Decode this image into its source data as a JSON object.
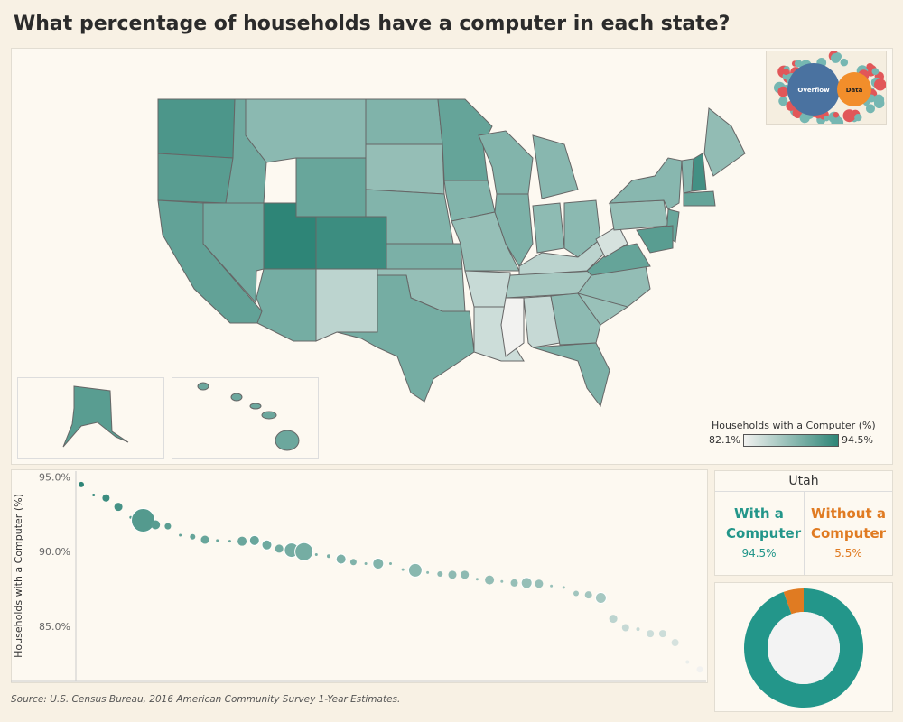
{
  "title": "What percentage of households have a computer in each state?",
  "logo": {
    "text_left": "Overflow",
    "text_right": "Data"
  },
  "colors": {
    "low": "#f2f2f0",
    "high": "#2e8577",
    "with": "#23968a",
    "without": "#e07b22"
  },
  "map": {
    "legend_title": "Households with a Computer (%)",
    "legend_min": "82.1%",
    "legend_max": "94.5%",
    "min": 82.1,
    "max": 94.5,
    "states": {
      "WA": 92.6,
      "OR": 91.8,
      "CA": 91.2,
      "NV": 90.2,
      "ID": 90.3,
      "MT": 88.6,
      "WY": 90.8,
      "UT": 94.5,
      "CO": 93.6,
      "AZ": 90.0,
      "NM": 85.5,
      "ND": 89.3,
      "SD": 88.0,
      "NE": 89.2,
      "KS": 89.6,
      "OK": 87.9,
      "TX": 90.0,
      "MN": 91.0,
      "IA": 89.2,
      "MO": 87.9,
      "AR": 84.8,
      "LA": 84.5,
      "WI": 89.2,
      "IL": 89.5,
      "MI": 88.8,
      "IN": 88.4,
      "OH": 88.6,
      "KY": 85.6,
      "TN": 86.9,
      "MS": 82.1,
      "AL": 84.9,
      "GA": 88.5,
      "FL": 89.5,
      "SC": 87.7,
      "NC": 88.1,
      "VA": 91.0,
      "WV": 83.9,
      "PA": 88.0,
      "NY": 88.8,
      "ME": 88.2,
      "NH": 93.2,
      "VT": 89.0,
      "MA": 91.0,
      "NJ": 90.8,
      "MD": 91.8,
      "AK": 91.8,
      "HI": 90.6
    }
  },
  "chart_data": {
    "type": "scatter",
    "ylabel": "Households with a Computer (%)",
    "ylim": [
      81.3,
      95.4
    ],
    "yticks": [
      "85.0%",
      "90.0%",
      "95.0%"
    ],
    "ytick_values": [
      85,
      90,
      95
    ],
    "grid": false,
    "points": [
      {
        "y": 94.5,
        "s": 3
      },
      {
        "y": 93.8,
        "s": 1.5
      },
      {
        "y": 93.6,
        "s": 4
      },
      {
        "y": 93.0,
        "s": 4.5
      },
      {
        "y": 92.3,
        "s": 1.5
      },
      {
        "y": 92.1,
        "s": 13
      },
      {
        "y": 91.8,
        "s": 5
      },
      {
        "y": 91.7,
        "s": 3.5
      },
      {
        "y": 91.1,
        "s": 1.5
      },
      {
        "y": 91.0,
        "s": 3
      },
      {
        "y": 90.8,
        "s": 4.5
      },
      {
        "y": 90.75,
        "s": 1.5
      },
      {
        "y": 90.7,
        "s": 1.5
      },
      {
        "y": 90.7,
        "s": 5
      },
      {
        "y": 90.75,
        "s": 5.5
      },
      {
        "y": 90.45,
        "s": 5.5
      },
      {
        "y": 90.2,
        "s": 4.5
      },
      {
        "y": 90.1,
        "s": 8
      },
      {
        "y": 90.0,
        "s": 10
      },
      {
        "y": 89.8,
        "s": 1.5
      },
      {
        "y": 89.7,
        "s": 2
      },
      {
        "y": 89.5,
        "s": 5.5
      },
      {
        "y": 89.3,
        "s": 3.5
      },
      {
        "y": 89.2,
        "s": 1.5
      },
      {
        "y": 89.2,
        "s": 6
      },
      {
        "y": 89.2,
        "s": 1.5
      },
      {
        "y": 88.8,
        "s": 1.5
      },
      {
        "y": 88.75,
        "s": 7.5
      },
      {
        "y": 88.6,
        "s": 1.5
      },
      {
        "y": 88.5,
        "s": 3
      },
      {
        "y": 88.45,
        "s": 4.5
      },
      {
        "y": 88.45,
        "s": 4.5
      },
      {
        "y": 88.15,
        "s": 1.5
      },
      {
        "y": 88.1,
        "s": 5
      },
      {
        "y": 88.0,
        "s": 1.5
      },
      {
        "y": 87.9,
        "s": 4
      },
      {
        "y": 87.9,
        "s": 6
      },
      {
        "y": 87.85,
        "s": 4.5
      },
      {
        "y": 87.7,
        "s": 1.5
      },
      {
        "y": 87.6,
        "s": 1.5
      },
      {
        "y": 87.2,
        "s": 3
      },
      {
        "y": 87.1,
        "s": 4
      },
      {
        "y": 86.9,
        "s": 6
      },
      {
        "y": 85.5,
        "s": 4.5
      },
      {
        "y": 84.9,
        "s": 4
      },
      {
        "y": 84.8,
        "s": 2
      },
      {
        "y": 84.5,
        "s": 4
      },
      {
        "y": 84.5,
        "s": 4
      },
      {
        "y": 83.9,
        "s": 4
      },
      {
        "y": 82.6,
        "s": 2
      },
      {
        "y": 82.1,
        "s": 3.5
      }
    ]
  },
  "source": "Source: U.S. Census Bureau, 2016 American Community Survey 1-Year Estimates.",
  "detail": {
    "state": "Utah",
    "with_label": "With a Computer",
    "with_pct": "94.5%",
    "without_label": "Without a Computer",
    "without_pct": "5.5%",
    "with_value": 94.5,
    "without_value": 5.5
  }
}
